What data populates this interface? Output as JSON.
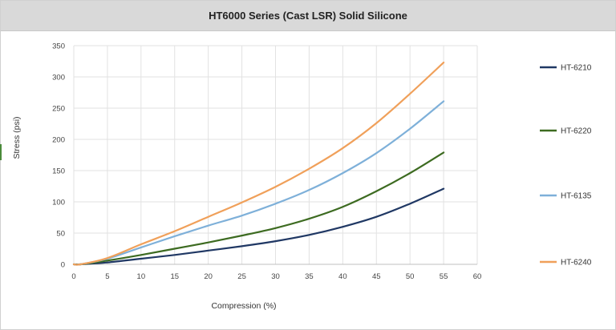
{
  "chart_data": {
    "type": "line",
    "title": "HT6000 Series (Cast LSR) Solid Silicone",
    "xlabel": "Compression (%)",
    "ylabel": "Stress (psi)",
    "xlim": [
      0,
      60
    ],
    "ylim": [
      0,
      350
    ],
    "xticks": [
      0,
      5,
      10,
      15,
      20,
      25,
      30,
      35,
      40,
      45,
      50,
      55,
      60
    ],
    "yticks": [
      0,
      50,
      100,
      150,
      200,
      250,
      300,
      350
    ],
    "grid": true,
    "legend_position": "right",
    "x": [
      0,
      1,
      5,
      10,
      15,
      20,
      25,
      30,
      35,
      40,
      45,
      50,
      55
    ],
    "series": [
      {
        "name": "HT-6210",
        "color": "#203864",
        "values": [
          0,
          0,
          3,
          9,
          15,
          22,
          29,
          37,
          47,
          60,
          76,
          97,
          121
        ]
      },
      {
        "name": "HT-6220",
        "color": "#3d6b21",
        "values": [
          0,
          0,
          6,
          15,
          25,
          35,
          46,
          58,
          73,
          92,
          117,
          146,
          179
        ]
      },
      {
        "name": "HT-6135",
        "color": "#7eb0d9",
        "values": [
          0,
          0,
          9,
          27,
          45,
          62,
          78,
          97,
          119,
          146,
          178,
          217,
          261
        ]
      },
      {
        "name": "HT-6240",
        "color": "#f0a05a",
        "values": [
          0,
          0,
          10,
          32,
          53,
          76,
          99,
          124,
          153,
          186,
          226,
          273,
          323
        ]
      }
    ]
  }
}
